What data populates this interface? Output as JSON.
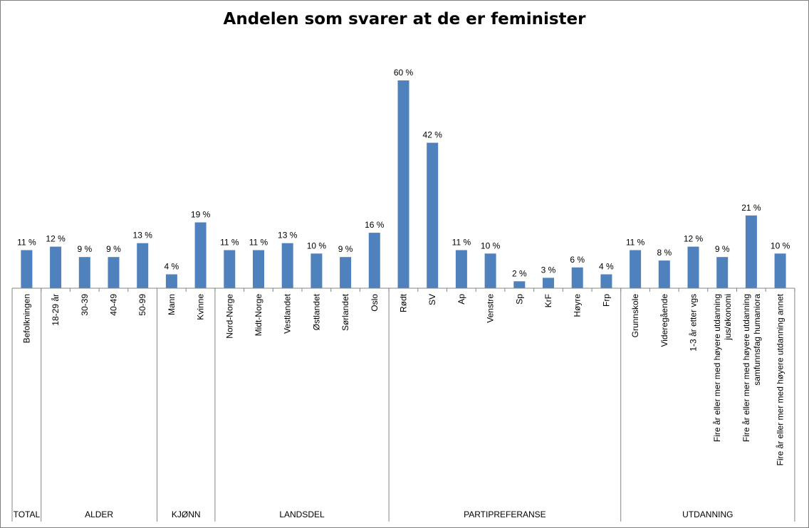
{
  "chart_data": {
    "type": "bar",
    "title": "Andelen som svarer at de er feminister",
    "bar_color": "#4F81BD",
    "ylim": [
      0,
      62
    ],
    "grid": false,
    "legend": "none",
    "groups": [
      {
        "name": "TOTAL",
        "categories": [
          {
            "label": "Befolkningen",
            "value": 11,
            "value_label": "11 %"
          }
        ]
      },
      {
        "name": "ALDER",
        "categories": [
          {
            "label": "18-29 år",
            "value": 12,
            "value_label": "12 %"
          },
          {
            "label": "30-39",
            "value": 9,
            "value_label": "9 %"
          },
          {
            "label": "40-49",
            "value": 9,
            "value_label": "9 %"
          },
          {
            "label": "50-99",
            "value": 13,
            "value_label": "13 %"
          }
        ]
      },
      {
        "name": "KJØNN",
        "categories": [
          {
            "label": "Mann",
            "value": 4,
            "value_label": "4 %"
          },
          {
            "label": "Kvinne",
            "value": 19,
            "value_label": "19 %"
          }
        ]
      },
      {
        "name": "LANDSDEL",
        "categories": [
          {
            "label": "Nord-Norge",
            "value": 11,
            "value_label": "11 %"
          },
          {
            "label": "Midt-Norge",
            "value": 11,
            "value_label": "11 %"
          },
          {
            "label": "Vestlandet",
            "value": 13,
            "value_label": "13 %"
          },
          {
            "label": "Østlandet",
            "value": 10,
            "value_label": "10 %"
          },
          {
            "label": "Sørlandet",
            "value": 9,
            "value_label": "9 %"
          },
          {
            "label": "Oslo",
            "value": 16,
            "value_label": "16 %"
          }
        ]
      },
      {
        "name": "PARTIPREFERANSE",
        "categories": [
          {
            "label": "Rødt",
            "value": 60,
            "value_label": "60 %"
          },
          {
            "label": "SV",
            "value": 42,
            "value_label": "42 %"
          },
          {
            "label": "Ap",
            "value": 11,
            "value_label": "11 %"
          },
          {
            "label": "Venstre",
            "value": 10,
            "value_label": "10 %"
          },
          {
            "label": "Sp",
            "value": 2,
            "value_label": "2 %"
          },
          {
            "label": "KrF",
            "value": 3,
            "value_label": "3 %"
          },
          {
            "label": "Høyre",
            "value": 6,
            "value_label": "6 %"
          },
          {
            "label": "Frp",
            "value": 4,
            "value_label": "4 %"
          }
        ]
      },
      {
        "name": "UTDANNING",
        "categories": [
          {
            "label": "Grunnskole",
            "value": 11,
            "value_label": "11 %"
          },
          {
            "label": "Videregående",
            "value": 8,
            "value_label": "8 %"
          },
          {
            "label": "1-3 år etter vgs",
            "value": 12,
            "value_label": "12 %"
          },
          {
            "label": "Fire år eller mer med høyere utdanning jus/økonomi",
            "label_lines": [
              "Fire år eller mer med høyere utdanning",
              "jus/økonomi"
            ],
            "value": 9,
            "value_label": "9 %"
          },
          {
            "label": "Fire år eller mer med høyere utdanning samfunnsfag humaniora",
            "label_lines": [
              "Fire år eller mer med høyere utdanning",
              "samfunnsfag humaniora"
            ],
            "value": 21,
            "value_label": "21 %"
          },
          {
            "label": "Fire år eller mer med høyere utdanning annet",
            "value": 10,
            "value_label": "10 %"
          }
        ]
      }
    ]
  }
}
